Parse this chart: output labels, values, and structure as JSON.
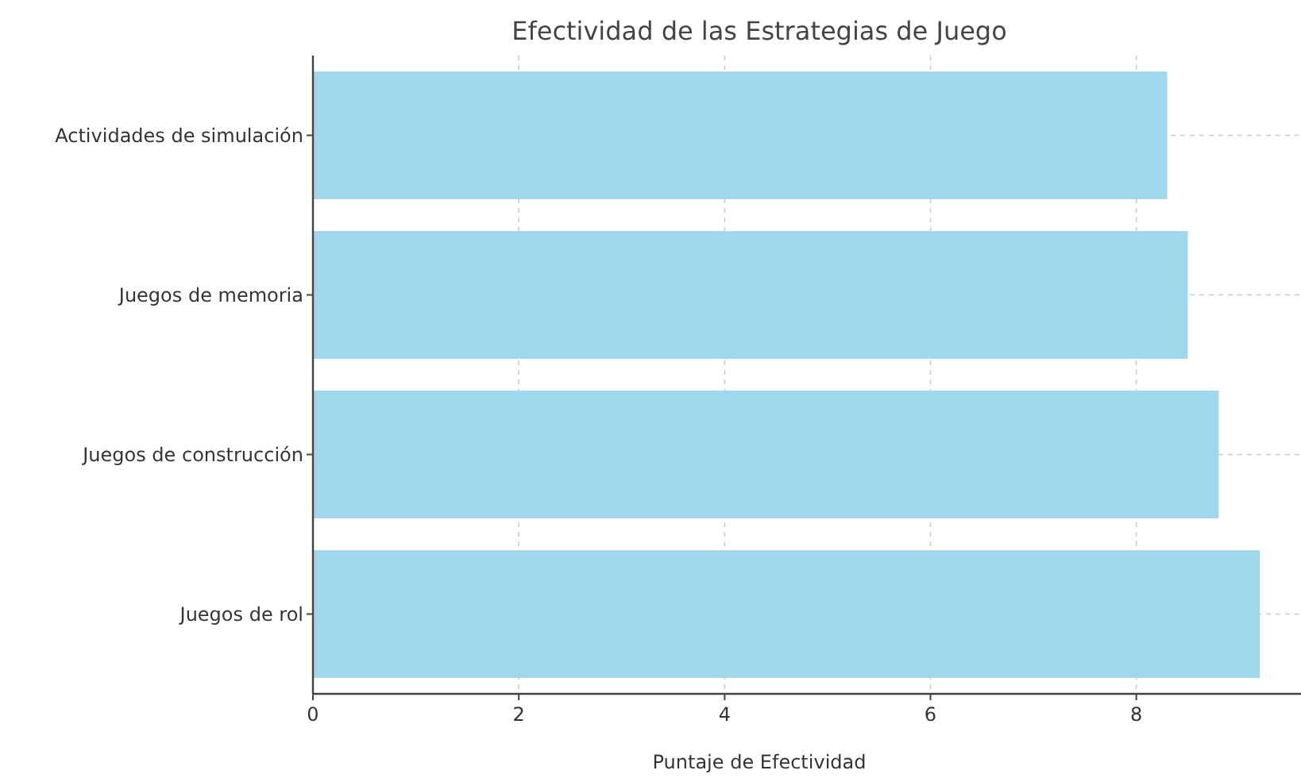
{
  "chart_data": {
    "type": "bar",
    "orientation": "horizontal",
    "title": "Efectividad de las Estrategias de Juego",
    "xlabel": "Puntaje de Efectividad",
    "categories": [
      "Actividades de simulación",
      "Juegos de memoria",
      "Juegos de construcción",
      "Juegos de rol"
    ],
    "values": [
      8.3,
      8.5,
      8.8,
      9.2
    ],
    "color": "#a0d7ed",
    "xlim": [
      0,
      9.6
    ],
    "xticks": [
      0,
      2,
      4,
      6,
      8
    ],
    "grid": true
  }
}
